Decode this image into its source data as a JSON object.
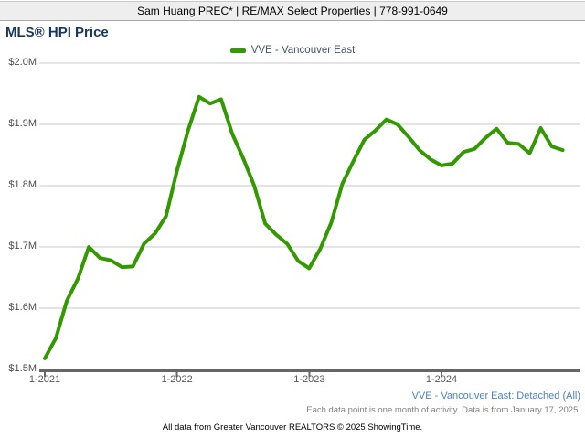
{
  "header": {
    "text": "Sam Huang PREC* | RE/MAX Select Properties | 778-991-0649"
  },
  "title": "MLS® HPI Price",
  "legend": {
    "label": "VVE - Vancouver East",
    "color": "#339900"
  },
  "chart_data": {
    "type": "line",
    "title": "MLS® HPI Price",
    "x_start": "1-2021",
    "x_end": "12-2024",
    "x_tick_labels": [
      "1-2021",
      "1-2022",
      "1-2023",
      "1-2024"
    ],
    "x_tick_month_indices": [
      0,
      12,
      24,
      36
    ],
    "y_ticks": [
      {
        "label": "$1.5M",
        "value": 1.5
      },
      {
        "label": "$1.6M",
        "value": 1.6
      },
      {
        "label": "$1.7M",
        "value": 1.7
      },
      {
        "label": "$1.8M",
        "value": 1.8
      },
      {
        "label": "$1.9M",
        "value": 1.9
      },
      {
        "label": "$2.0M",
        "value": 2.0
      }
    ],
    "ylim": [
      1.5,
      2.0
    ],
    "grid": true,
    "legend_position": "top-center",
    "series": [
      {
        "name": "VVE - Vancouver East",
        "color": "#339900",
        "values": [
          1.518,
          1.551,
          1.612,
          1.648,
          1.7,
          1.682,
          1.678,
          1.667,
          1.668,
          1.705,
          1.722,
          1.75,
          1.825,
          1.89,
          1.945,
          1.934,
          1.941,
          1.885,
          1.845,
          1.8,
          1.738,
          1.72,
          1.705,
          1.677,
          1.665,
          1.697,
          1.74,
          1.803,
          1.84,
          1.875,
          1.89,
          1.908,
          1.9,
          1.88,
          1.858,
          1.843,
          1.833,
          1.836,
          1.855,
          1.86,
          1.878,
          1.893,
          1.87,
          1.868,
          1.853,
          1.894,
          1.864,
          1.858
        ]
      }
    ]
  },
  "footer": {
    "series_note": "VVE - Vancouver East: Detached (All)",
    "data_note": "Each data point is one month of activity. Data is from January 17, 2025.",
    "attribution": "All data from Greater Vancouver REALTORS © 2025 ShowingTime."
  }
}
